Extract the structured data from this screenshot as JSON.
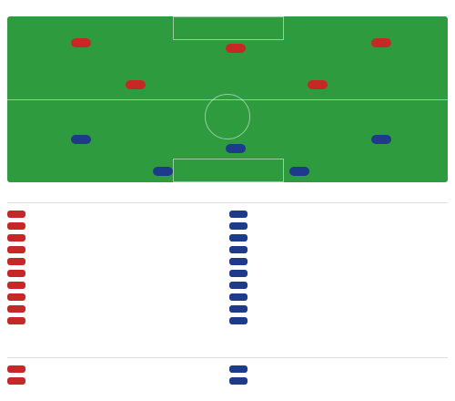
{
  "header": {
    "lineup_title": "",
    "subs_title": "",
    "injuries_title": ""
  },
  "colors": {
    "home": "#c62828",
    "away": "#1e3a8a",
    "field": "#2f9b3f"
  }
}
